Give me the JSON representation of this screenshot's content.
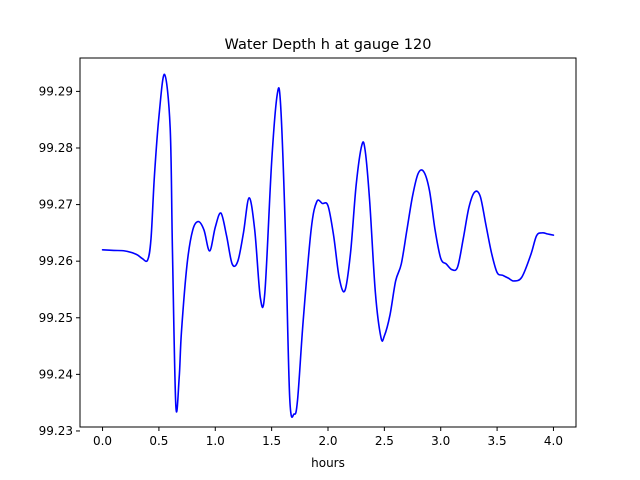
{
  "chart_data": {
    "type": "line",
    "title": "Water Depth h at gauge 120",
    "xlabel": "hours",
    "ylabel": "",
    "xlim": [
      -0.2,
      4.2
    ],
    "ylim": [
      99.2307,
      99.2959
    ],
    "x_ticks": [
      0.0,
      0.5,
      1.0,
      1.5,
      2.0,
      2.5,
      3.0,
      3.5,
      4.0
    ],
    "x_tick_labels": [
      "0.0",
      "0.5",
      "1.0",
      "1.5",
      "2.0",
      "2.5",
      "3.0",
      "3.5",
      "4.0"
    ],
    "y_ticks": [
      99.23,
      99.24,
      99.25,
      99.26,
      99.27,
      99.28,
      99.29
    ],
    "y_tick_labels": [
      "99.23",
      "99.24",
      "99.25",
      "99.26",
      "99.27",
      "99.28",
      "99.29"
    ],
    "grid": false,
    "legend": "none",
    "series": [
      {
        "color": "#0000ff",
        "x": [
          0.0,
          0.1,
          0.2,
          0.3,
          0.35,
          0.4,
          0.43,
          0.46,
          0.5,
          0.55,
          0.6,
          0.62,
          0.65,
          0.68,
          0.7,
          0.75,
          0.8,
          0.85,
          0.9,
          0.95,
          1.0,
          1.05,
          1.1,
          1.15,
          1.2,
          1.25,
          1.3,
          1.35,
          1.4,
          1.44,
          1.5,
          1.55,
          1.58,
          1.62,
          1.66,
          1.7,
          1.73,
          1.78,
          1.85,
          1.9,
          1.95,
          2.0,
          2.05,
          2.1,
          2.15,
          2.2,
          2.25,
          2.3,
          2.33,
          2.37,
          2.42,
          2.47,
          2.5,
          2.55,
          2.6,
          2.65,
          2.7,
          2.75,
          2.8,
          2.85,
          2.9,
          2.95,
          3.0,
          3.05,
          3.1,
          3.15,
          3.2,
          3.25,
          3.3,
          3.35,
          3.4,
          3.45,
          3.5,
          3.55,
          3.6,
          3.65,
          3.72,
          3.8,
          3.85,
          3.9,
          3.95,
          4.0
        ],
        "y": [
          99.262,
          99.2619,
          99.2618,
          99.2612,
          99.2605,
          99.2602,
          99.264,
          99.275,
          99.2855,
          99.293,
          99.2835,
          99.262,
          99.2345,
          99.2395,
          99.2475,
          99.2595,
          99.2655,
          99.267,
          99.2655,
          99.2618,
          99.266,
          99.2685,
          99.2645,
          99.2595,
          99.26,
          99.265,
          99.2712,
          99.2655,
          99.2535,
          99.2545,
          99.2775,
          99.2895,
          99.2875,
          99.2665,
          99.236,
          99.233,
          99.2355,
          99.2495,
          99.2655,
          99.2705,
          99.2702,
          99.2698,
          99.2645,
          99.257,
          99.2548,
          99.2615,
          99.2735,
          99.2805,
          99.2795,
          99.2705,
          99.2545,
          99.2465,
          99.2468,
          99.2505,
          99.2565,
          99.2595,
          99.2655,
          99.2715,
          99.2755,
          99.2758,
          99.2725,
          99.2655,
          99.2605,
          99.2595,
          99.2585,
          99.259,
          99.264,
          99.2695,
          99.2722,
          99.2715,
          99.2665,
          99.2615,
          99.258,
          99.2575,
          99.257,
          99.2565,
          99.2572,
          99.2612,
          99.2645,
          99.265,
          99.2648,
          99.2646
        ]
      }
    ]
  }
}
